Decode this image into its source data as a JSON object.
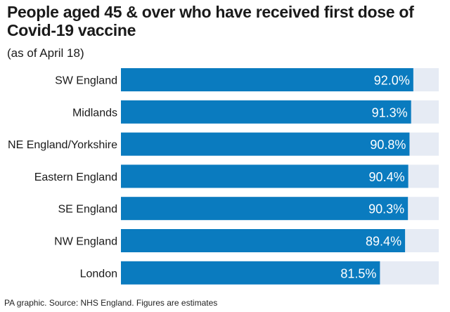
{
  "title": "People aged 45 & over who have received first dose of Covid-19 vaccine",
  "subtitle": "(as of April 18)",
  "footer": "PA graphic. Source: NHS England. Figures are estimates",
  "colors": {
    "bar": "#0a7bbf",
    "track": "#e6ebf4",
    "value_text": "#ffffff",
    "label_text": "#1a1a1a"
  },
  "chart_data": {
    "type": "bar",
    "orientation": "horizontal",
    "categories": [
      "SW England",
      "Midlands",
      "NE England/Yorkshire",
      "Eastern England",
      "SE England",
      "NW England",
      "London"
    ],
    "values": [
      92.0,
      91.3,
      90.8,
      90.4,
      90.3,
      89.4,
      81.5
    ],
    "value_labels": [
      "92.0%",
      "91.3%",
      "90.8%",
      "90.4%",
      "90.3%",
      "89.4%",
      "81.5%"
    ],
    "xlim": [
      0,
      100
    ],
    "grid": false,
    "legend": "none"
  }
}
